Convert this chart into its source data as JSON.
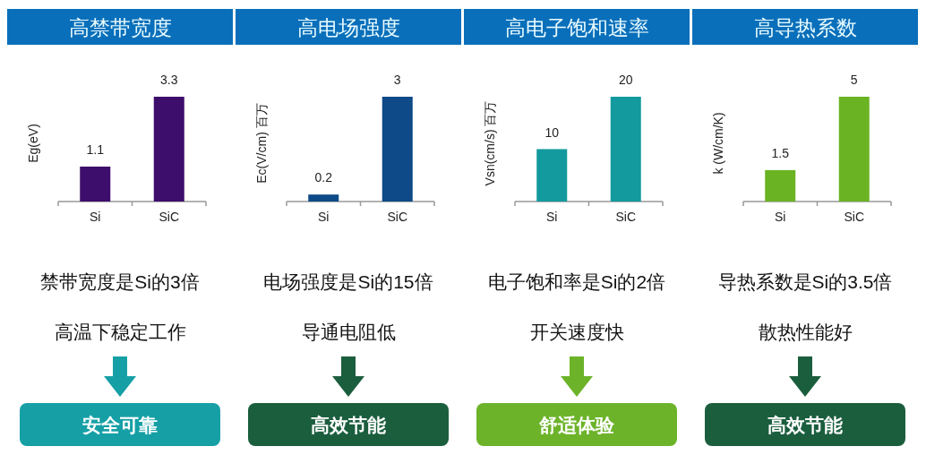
{
  "chart_data": [
    {
      "type": "bar",
      "title": "高禁带宽度",
      "ylabel": "Eg(eV)",
      "categories": [
        "Si",
        "SiC"
      ],
      "values": [
        1.1,
        3.3
      ],
      "colors": [
        "#3d0e6b",
        "#3d0e6b"
      ],
      "data_labels": true,
      "annotations": [
        "禁带宽度是Si的3倍",
        "高温下稳定工作",
        "安全可靠"
      ]
    },
    {
      "type": "bar",
      "title": "高电场强度",
      "ylabel": "Ec(V/cm) 百万",
      "categories": [
        "Si",
        "SiC"
      ],
      "values": [
        0.2,
        3
      ],
      "colors": [
        "#0d4a87",
        "#0d4a87"
      ],
      "data_labels": true,
      "annotations": [
        "电场强度是Si的15倍",
        "导通电阻低",
        "高效节能"
      ]
    },
    {
      "type": "bar",
      "title": "高电子饱和速率",
      "ylabel": "Vsn(cm/s) 百万",
      "categories": [
        "Si",
        "SiC"
      ],
      "values": [
        10,
        20
      ],
      "colors": [
        "#129a9e",
        "#129a9e"
      ],
      "data_labels": true,
      "annotations": [
        "电子饱和率是Si的2倍",
        "开关速度快",
        "舒适体验"
      ]
    },
    {
      "type": "bar",
      "title": "高导热系数",
      "ylabel": "k (W/cm/K)",
      "categories": [
        "Si",
        "SiC"
      ],
      "values": [
        1.5,
        5
      ],
      "colors": [
        "#6ab323",
        "#6ab323"
      ],
      "data_labels": true,
      "annotations": [
        "导热系数是Si的3.5倍",
        "散热性能好",
        "高效节能"
      ]
    }
  ]
}
